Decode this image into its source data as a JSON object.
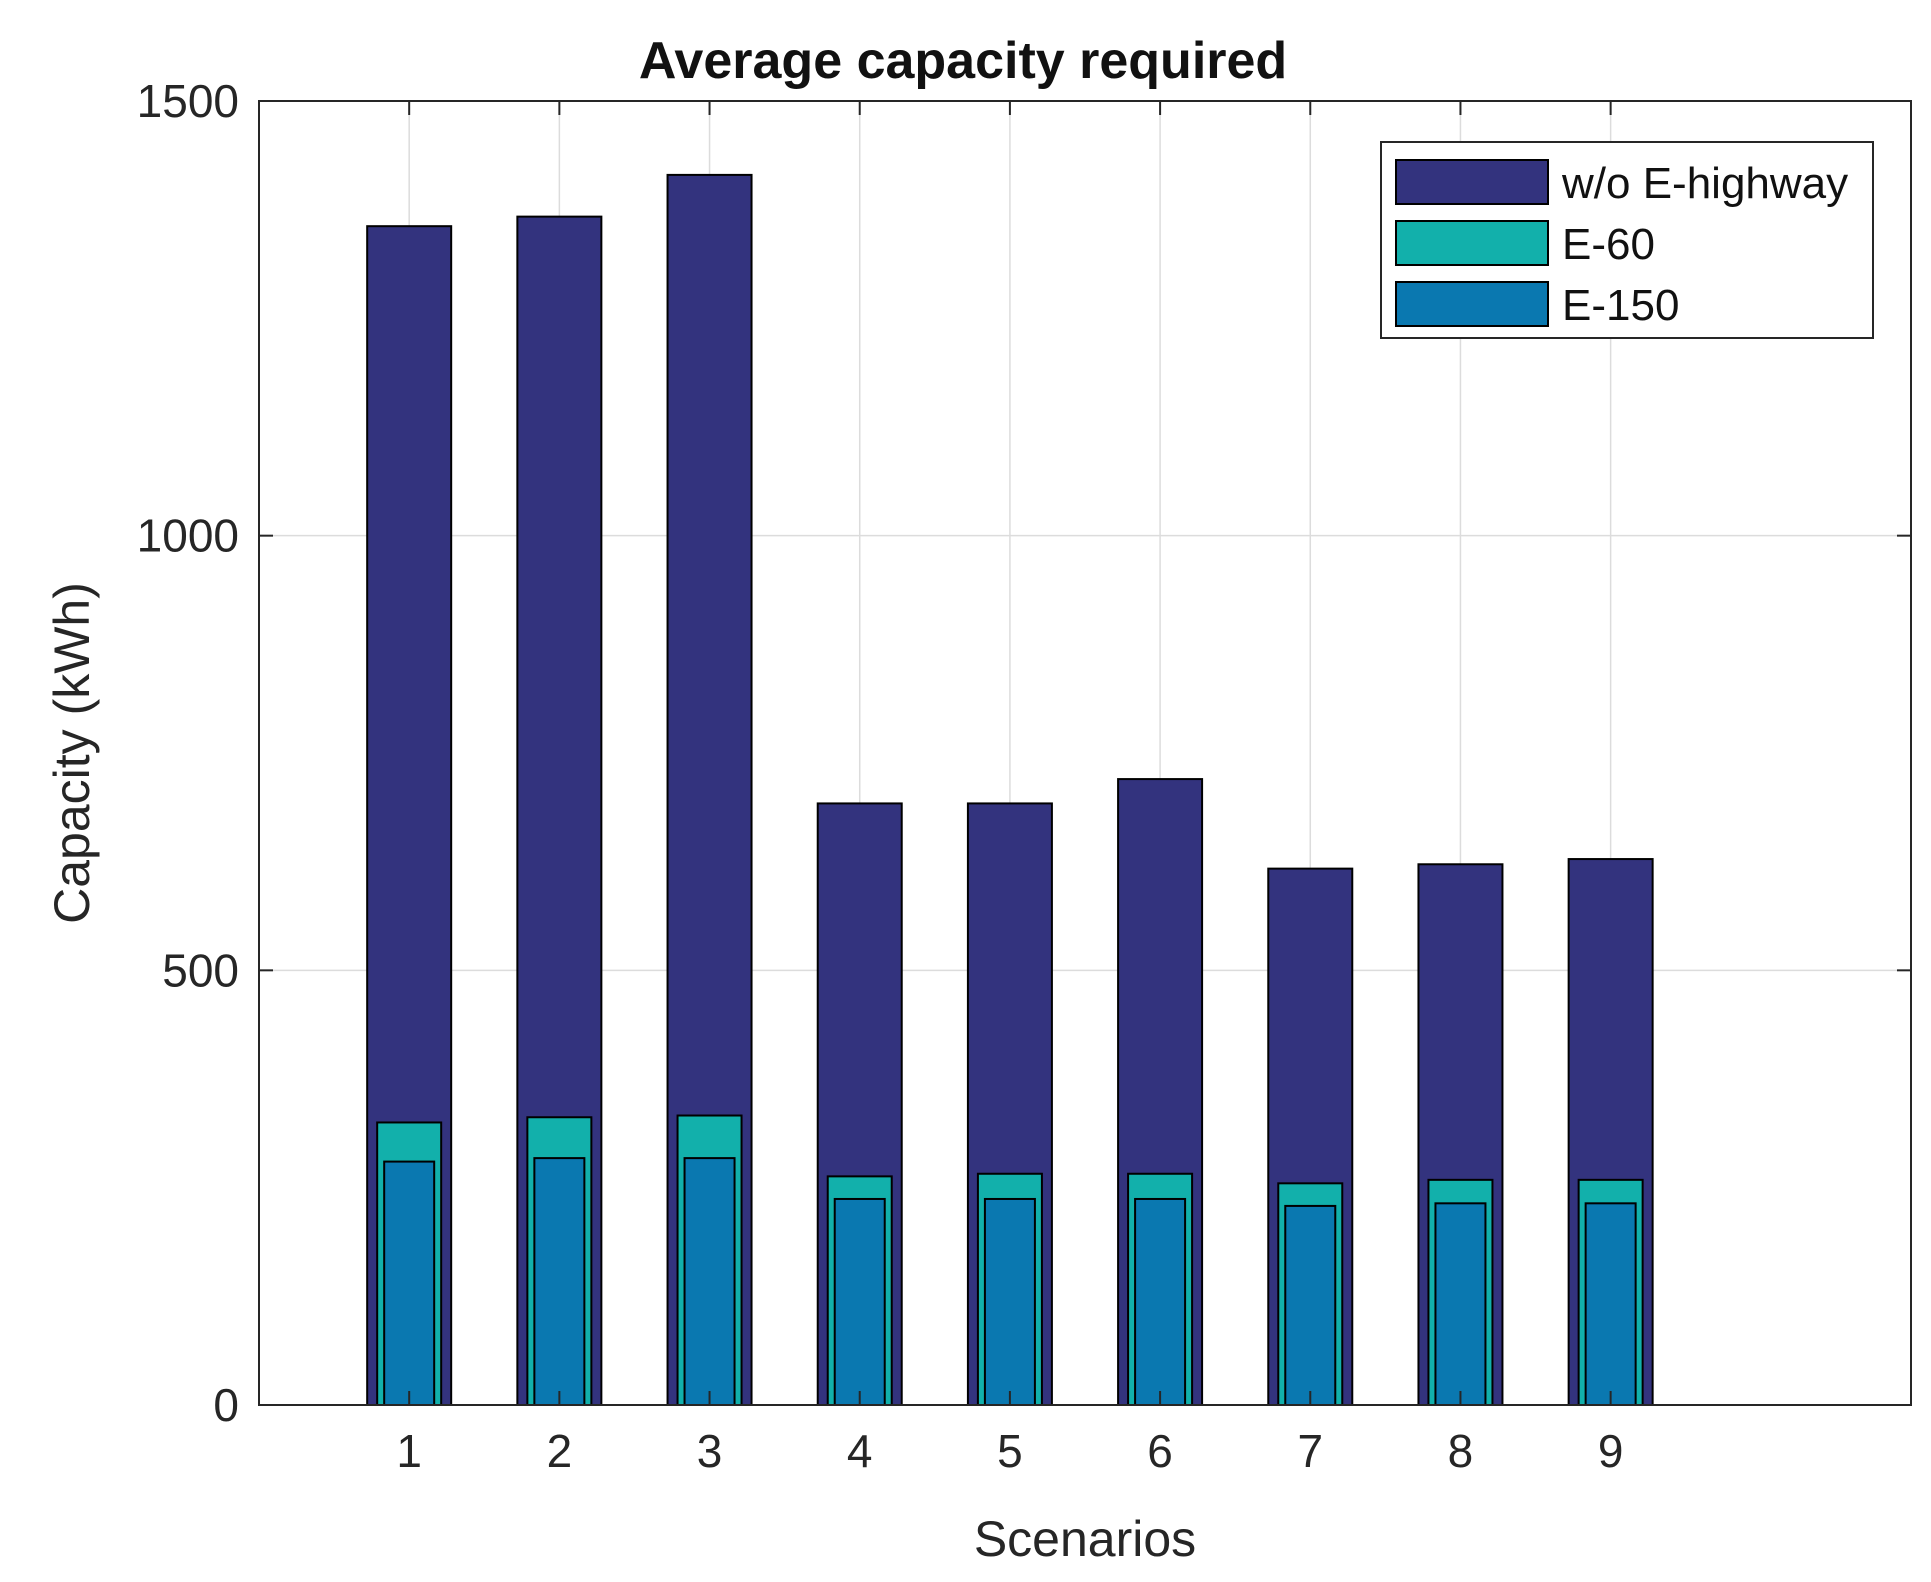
{
  "chart_data": {
    "type": "bar",
    "title": "Average capacity required",
    "xlabel": "Scenarios",
    "ylabel": "Capacity (kWh)",
    "categories": [
      "1",
      "2",
      "3",
      "4",
      "5",
      "6",
      "7",
      "8",
      "9"
    ],
    "ylim": [
      0,
      1500
    ],
    "yticks": [
      0,
      500,
      1000,
      1500
    ],
    "grid": true,
    "legend_position": "top-right",
    "series": [
      {
        "name": "w/o E-highway",
        "color": "#33337e",
        "values": [
          1356,
          1367,
          1415,
          692,
          692,
          720,
          617,
          622,
          628
        ]
      },
      {
        "name": "E-60",
        "color": "#12b0ab",
        "values": [
          325,
          331,
          333,
          263,
          266,
          266,
          255,
          259,
          259
        ]
      },
      {
        "name": "E-150",
        "color": "#0a78b0",
        "values": [
          280,
          284,
          284,
          237,
          237,
          237,
          229,
          232,
          232
        ]
      }
    ]
  }
}
